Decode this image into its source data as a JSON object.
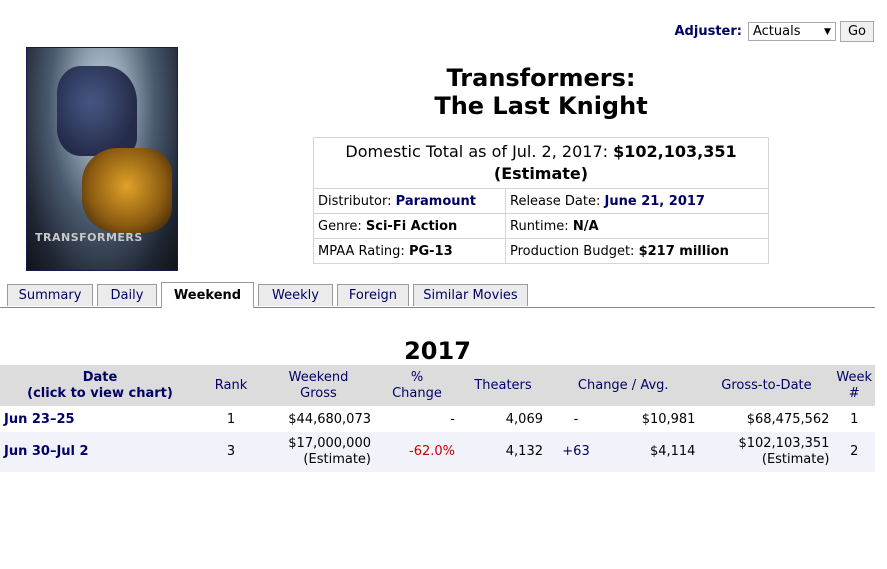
{
  "adjuster": {
    "label": "Adjuster:",
    "selected": "Actuals",
    "go_label": "Go"
  },
  "poster": {
    "logo_text": "TRANSFORMERS"
  },
  "title": {
    "line1": "Transformers:",
    "line2": "The Last Knight"
  },
  "summary": {
    "total_prefix": "Domestic Total as of Jul. 2, 2017:",
    "total_value": "$102,103,351",
    "total_note": "(Estimate)",
    "distributor_label": "Distributor:",
    "distributor": "Paramount",
    "release_label": "Release Date:",
    "release": "June 21, 2017",
    "genre_label": "Genre:",
    "genre": "Sci-Fi Action",
    "runtime_label": "Runtime:",
    "runtime": "N/A",
    "mpaa_label": "MPAA Rating:",
    "mpaa": "PG-13",
    "budget_label": "Production Budget:",
    "budget": "$217 million"
  },
  "tabs": [
    "Summary",
    "Daily",
    "Weekend",
    "Weekly",
    "Foreign",
    "Similar Movies"
  ],
  "active_tab": "Weekend",
  "year": "2017",
  "table": {
    "headers": {
      "date1": "Date",
      "date2": "(click to view chart)",
      "rank": "Rank",
      "gross1": "Weekend",
      "gross2": "Gross",
      "change1": "%",
      "change2": "Change",
      "theaters": "Theaters",
      "change_avg": "Change / Avg.",
      "gtd": "Gross-to-Date",
      "week1": "Week",
      "week2": "#"
    },
    "rows": [
      {
        "date": "Jun 23–25",
        "rank": "1",
        "gross": "$44,680,073",
        "gross_note": "",
        "pct_change": "-",
        "theaters": "4,069",
        "theater_change": "-",
        "avg": "$10,981",
        "gtd": "$68,475,562",
        "gtd_note": "",
        "week": "1"
      },
      {
        "date": "Jun 30–Jul 2",
        "rank": "3",
        "gross": "$17,000,000",
        "gross_note": "(Estimate)",
        "pct_change": "-62.0%",
        "theaters": "4,132",
        "theater_change": "+63",
        "avg": "$4,114",
        "gtd": "$102,103,351",
        "gtd_note": "(Estimate)",
        "week": "2"
      }
    ]
  },
  "colors": {
    "link": "#000066",
    "negative": "#cc0000",
    "header_bg": "#dcdcdc",
    "alt_row_bg": "#f2f2fa"
  }
}
